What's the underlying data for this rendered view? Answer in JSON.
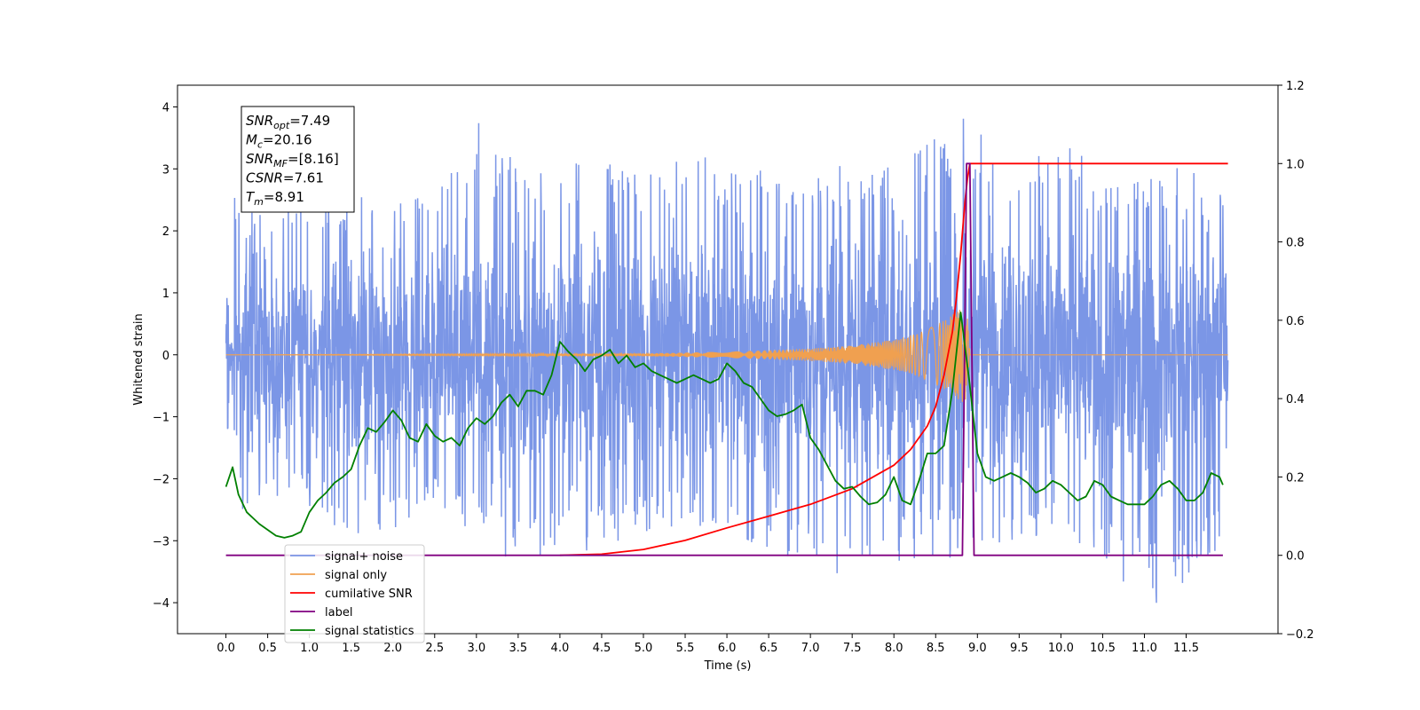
{
  "chart_data": {
    "type": "line",
    "xlabel": "Time (s)",
    "ylabel": "Whitened strain",
    "xlim": [
      -0.58,
      12.6
    ],
    "ylim": [
      -4.5,
      4.35
    ],
    "y2lim": [
      -0.2,
      1.2
    ],
    "x_ticks": [
      0.0,
      0.5,
      1.0,
      1.5,
      2.0,
      2.5,
      3.0,
      3.5,
      4.0,
      4.5,
      5.0,
      5.5,
      6.0,
      6.5,
      7.0,
      7.5,
      8.0,
      8.5,
      9.0,
      9.5,
      10.0,
      10.5,
      11.0,
      11.5
    ],
    "x_tick_labels": [
      "0.0",
      "0.5",
      "1.0",
      "1.5",
      "2.0",
      "2.5",
      "3.0",
      "3.5",
      "4.0",
      "4.5",
      "5.0",
      "5.5",
      "6.0",
      "6.5",
      "7.0",
      "7.5",
      "8.0",
      "8.5",
      "9.0",
      "9.5",
      "10.0",
      "10.5",
      "11.0",
      "11.5"
    ],
    "y_ticks": [
      -4,
      -3,
      -2,
      -1,
      0,
      1,
      2,
      3,
      4
    ],
    "y_tick_labels": [
      "−4",
      "−3",
      "−2",
      "−1",
      "0",
      "1",
      "2",
      "3",
      "4"
    ],
    "y2_ticks": [
      -0.2,
      0.0,
      0.2,
      0.4,
      0.6,
      0.8,
      1.0,
      1.2
    ],
    "y2_tick_labels": [
      "−0.2",
      "0.0",
      "0.2",
      "0.4",
      "0.6",
      "0.8",
      "1.0",
      "1.2"
    ],
    "grid": false,
    "legend_position": "lower-left",
    "info_box": [
      {
        "main": "SNR",
        "sub": "opt",
        "value": "=7.49"
      },
      {
        "main": "M",
        "sub": "c",
        "value": "=20.16"
      },
      {
        "main": "SNR",
        "sub": "MF",
        "value": "=[8.16]"
      },
      {
        "main": "CSNR",
        "sub": "",
        "value": "=7.61"
      },
      {
        "main": "T",
        "sub": "m",
        "value": "=8.91"
      }
    ],
    "series": [
      {
        "name": "signal+ noise",
        "color": "#7b96e6",
        "axis": "left",
        "kind": "noise",
        "x_range": [
          0.0,
          12.0
        ],
        "envelope_peaks": [
          [
            0.0,
            1.0
          ],
          [
            0.1,
            2.6
          ],
          [
            0.6,
            2.2
          ],
          [
            1.0,
            2.7
          ],
          [
            1.5,
            2.6
          ],
          [
            2.0,
            2.8
          ],
          [
            2.5,
            2.9
          ],
          [
            3.1,
            3.92
          ],
          [
            3.5,
            3.0
          ],
          [
            4.0,
            3.0
          ],
          [
            4.5,
            3.3
          ],
          [
            5.0,
            3.0
          ],
          [
            5.5,
            3.4
          ],
          [
            6.0,
            3.0
          ],
          [
            6.5,
            3.0
          ],
          [
            7.0,
            3.0
          ],
          [
            7.5,
            3.2
          ],
          [
            8.0,
            3.0
          ],
          [
            8.8,
            3.85
          ],
          [
            9.5,
            3.2
          ],
          [
            10.1,
            3.37
          ],
          [
            10.5,
            3.0
          ],
          [
            11.0,
            3.1
          ],
          [
            11.5,
            3.0
          ],
          [
            12.0,
            2.8
          ]
        ],
        "envelope_troughs": [
          [
            0.0,
            -1.05
          ],
          [
            0.2,
            -2.85
          ],
          [
            0.6,
            -2.4
          ],
          [
            1.0,
            -2.5
          ],
          [
            1.3,
            -2.9
          ],
          [
            1.9,
            -3.0
          ],
          [
            2.5,
            -2.6
          ],
          [
            3.5,
            -3.38
          ],
          [
            4.1,
            -3.3
          ],
          [
            5.0,
            -2.9
          ],
          [
            6.0,
            -3.0
          ],
          [
            6.8,
            -3.3
          ],
          [
            7.15,
            -3.6
          ],
          [
            7.6,
            -3.53
          ],
          [
            8.1,
            -3.4
          ],
          [
            8.8,
            -3.3
          ],
          [
            9.5,
            -3.0
          ],
          [
            10.5,
            -3.3
          ],
          [
            11.05,
            -4.1
          ],
          [
            11.5,
            -3.67
          ],
          [
            12.0,
            -3.0
          ]
        ]
      },
      {
        "name": "signal only",
        "color": "#f0a050",
        "axis": "left",
        "kind": "chirp",
        "amplitude_points": [
          [
            0.0,
            0.0
          ],
          [
            5.0,
            0.02
          ],
          [
            6.0,
            0.05
          ],
          [
            7.0,
            0.1
          ],
          [
            7.5,
            0.15
          ],
          [
            8.0,
            0.24
          ],
          [
            8.3,
            0.35
          ],
          [
            8.6,
            0.55
          ],
          [
            8.8,
            0.75
          ],
          [
            8.87,
            0.85
          ],
          [
            8.91,
            0.0
          ],
          [
            12.0,
            0.0
          ]
        ]
      },
      {
        "name": "cumilative SNR",
        "color": "#ff0000",
        "axis": "right",
        "x": [
          4.0,
          4.5,
          5.0,
          5.5,
          6.0,
          6.5,
          7.0,
          7.5,
          8.0,
          8.2,
          8.4,
          8.5,
          8.6,
          8.7,
          8.75,
          8.8,
          8.85,
          8.88,
          8.91,
          9.0,
          12.0
        ],
        "values": [
          0.0,
          0.003,
          0.015,
          0.038,
          0.07,
          0.1,
          0.13,
          0.17,
          0.23,
          0.27,
          0.33,
          0.38,
          0.46,
          0.57,
          0.66,
          0.77,
          0.9,
          0.96,
          1.0,
          1.0,
          1.0
        ]
      },
      {
        "name": "label",
        "color": "#800080",
        "axis": "right",
        "x": [
          0.0,
          8.82,
          8.87,
          8.91,
          8.96,
          11.94
        ],
        "values": [
          0.0,
          0.0,
          1.0,
          1.0,
          0.0,
          0.0
        ]
      },
      {
        "name": "signal statistics",
        "color": "#008000",
        "axis": "right",
        "x": [
          0.0,
          0.08,
          0.15,
          0.25,
          0.4,
          0.5,
          0.6,
          0.7,
          0.8,
          0.9,
          1.0,
          1.1,
          1.2,
          1.3,
          1.4,
          1.5,
          1.6,
          1.7,
          1.8,
          1.9,
          2.0,
          2.1,
          2.2,
          2.3,
          2.4,
          2.5,
          2.6,
          2.7,
          2.8,
          2.9,
          3.0,
          3.1,
          3.2,
          3.3,
          3.4,
          3.5,
          3.6,
          3.7,
          3.8,
          3.9,
          4.0,
          4.1,
          4.2,
          4.3,
          4.4,
          4.5,
          4.6,
          4.7,
          4.8,
          4.9,
          5.0,
          5.1,
          5.2,
          5.3,
          5.4,
          5.5,
          5.6,
          5.7,
          5.8,
          5.9,
          6.0,
          6.1,
          6.2,
          6.3,
          6.4,
          6.5,
          6.6,
          6.7,
          6.8,
          6.9,
          7.0,
          7.1,
          7.2,
          7.3,
          7.4,
          7.5,
          7.6,
          7.7,
          7.8,
          7.9,
          8.0,
          8.1,
          8.2,
          8.3,
          8.4,
          8.5,
          8.6,
          8.7,
          8.8,
          8.9,
          9.0,
          9.1,
          9.2,
          9.3,
          9.4,
          9.5,
          9.6,
          9.7,
          9.8,
          9.9,
          10.0,
          10.1,
          10.2,
          10.3,
          10.4,
          10.5,
          10.6,
          10.7,
          10.8,
          10.9,
          11.0,
          11.1,
          11.2,
          11.3,
          11.4,
          11.5,
          11.6,
          11.7,
          11.8,
          11.9,
          11.94
        ],
        "values": [
          0.175,
          0.225,
          0.155,
          0.11,
          0.08,
          0.065,
          0.05,
          0.045,
          0.05,
          0.06,
          0.11,
          0.14,
          0.16,
          0.185,
          0.2,
          0.22,
          0.28,
          0.325,
          0.315,
          0.34,
          0.37,
          0.345,
          0.3,
          0.29,
          0.335,
          0.305,
          0.29,
          0.3,
          0.28,
          0.325,
          0.35,
          0.335,
          0.355,
          0.39,
          0.41,
          0.38,
          0.42,
          0.42,
          0.41,
          0.46,
          0.545,
          0.52,
          0.5,
          0.47,
          0.5,
          0.51,
          0.525,
          0.49,
          0.51,
          0.48,
          0.49,
          0.47,
          0.46,
          0.45,
          0.44,
          0.45,
          0.46,
          0.45,
          0.44,
          0.45,
          0.49,
          0.47,
          0.44,
          0.43,
          0.4,
          0.37,
          0.355,
          0.36,
          0.37,
          0.385,
          0.3,
          0.27,
          0.23,
          0.19,
          0.17,
          0.175,
          0.15,
          0.13,
          0.135,
          0.155,
          0.2,
          0.14,
          0.13,
          0.19,
          0.26,
          0.26,
          0.28,
          0.42,
          0.62,
          0.45,
          0.26,
          0.2,
          0.19,
          0.2,
          0.21,
          0.2,
          0.185,
          0.16,
          0.17,
          0.19,
          0.18,
          0.16,
          0.14,
          0.15,
          0.19,
          0.18,
          0.15,
          0.14,
          0.13,
          0.13,
          0.13,
          0.15,
          0.18,
          0.19,
          0.17,
          0.14,
          0.14,
          0.16,
          0.21,
          0.2,
          0.18
        ]
      }
    ]
  }
}
